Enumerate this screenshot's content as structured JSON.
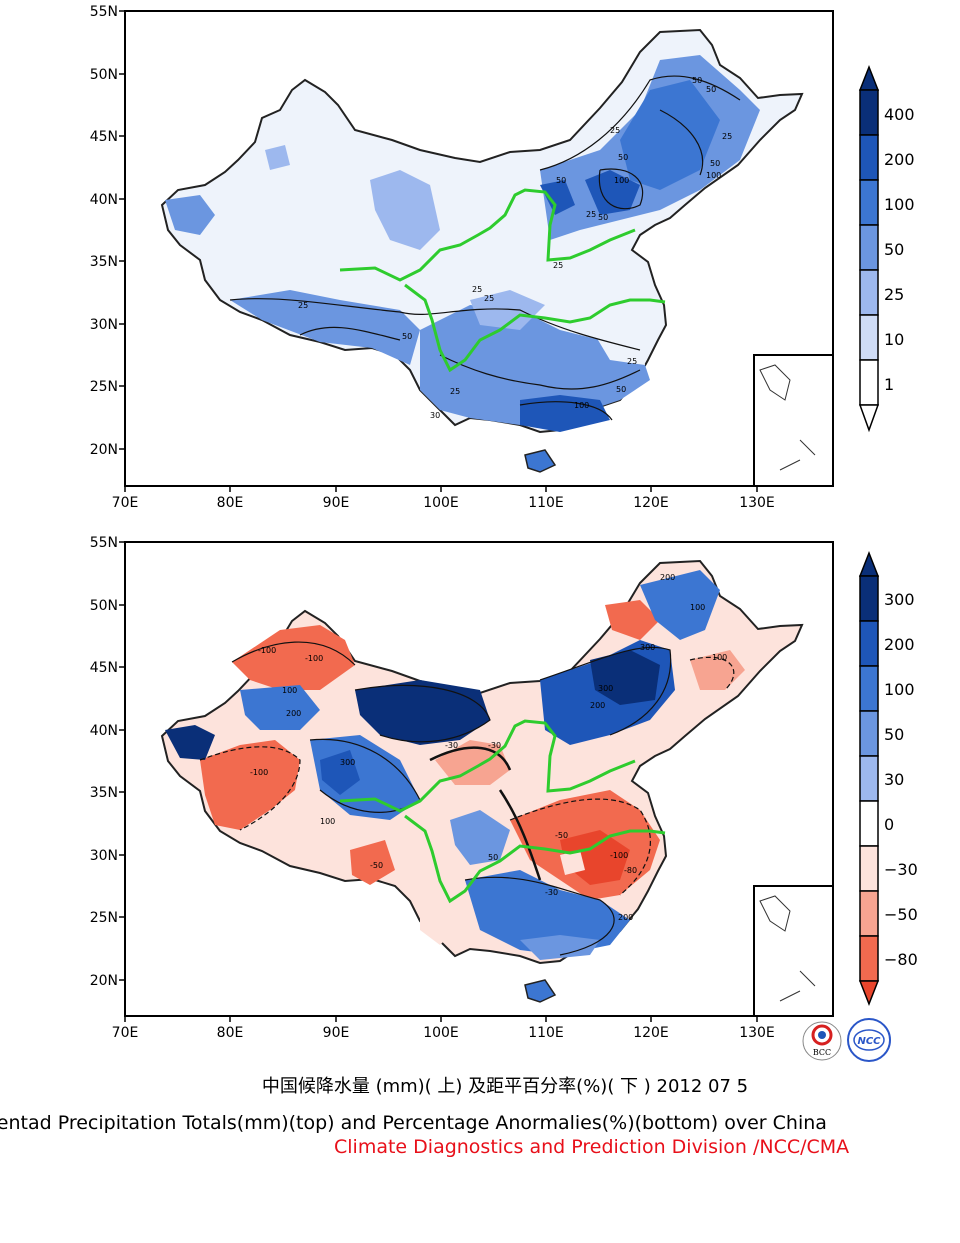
{
  "top_map": {
    "lat_ticks": [
      "55N",
      "50N",
      "45N",
      "40N",
      "35N",
      "30N",
      "25N",
      "20N"
    ],
    "lon_ticks": [
      "70E",
      "80E",
      "90E",
      "100E",
      "110E",
      "120E",
      "130E"
    ],
    "colorbar": {
      "labels": [
        "400",
        "200",
        "100",
        "50",
        "25",
        "10",
        "1"
      ],
      "colors": [
        "#0a2f78",
        "#1e56b8",
        "#3c76d2",
        "#6b96e0",
        "#9db8ee",
        "#cfdcf6",
        "#ffffff"
      ]
    },
    "contour_labels": [
      "50",
      "50",
      "25",
      "25",
      "50",
      "100",
      "50",
      "100",
      "25",
      "50",
      "25",
      "25",
      "25",
      "25",
      "50",
      "25",
      "50",
      "25",
      "100",
      "50",
      "30"
    ]
  },
  "bottom_map": {
    "lat_ticks": [
      "55N",
      "50N",
      "45N",
      "40N",
      "35N",
      "30N",
      "25N",
      "20N"
    ],
    "lon_ticks": [
      "70E",
      "80E",
      "90E",
      "100E",
      "110E",
      "120E",
      "130E"
    ],
    "colorbar": {
      "labels": [
        "300",
        "200",
        "100",
        "50",
        "30",
        "0",
        "−30",
        "−50",
        "−80"
      ],
      "colors": [
        "#0a2f78",
        "#1e56b8",
        "#3c76d2",
        "#6b96e0",
        "#9db8ee",
        "#ffffff",
        "#fde3dc",
        "#f7a491",
        "#f26a4f",
        "#e8452c"
      ]
    },
    "contour_labels": [
      "200",
      "100",
      "100",
      "300",
      "-100",
      "300",
      "200",
      "-100",
      "100",
      "200",
      "300",
      "-100",
      "-30",
      "-30",
      "-50",
      "-50",
      "-100",
      "-80",
      "200",
      "-30",
      "50",
      "100"
    ]
  },
  "captions": {
    "chinese": "中国候降水量 (mm)( 上) 及距平百分率(%)( 下 ) 2012 07 5",
    "english": "Pentad Precipitation Totals(mm)(top) and Percentage Anormalies(%)(bottom) over China",
    "org": "Climate Diagnostics and Prediction Division /NCC/CMA"
  },
  "logos": {
    "bcc": "BCC",
    "ncc": "NCC"
  }
}
